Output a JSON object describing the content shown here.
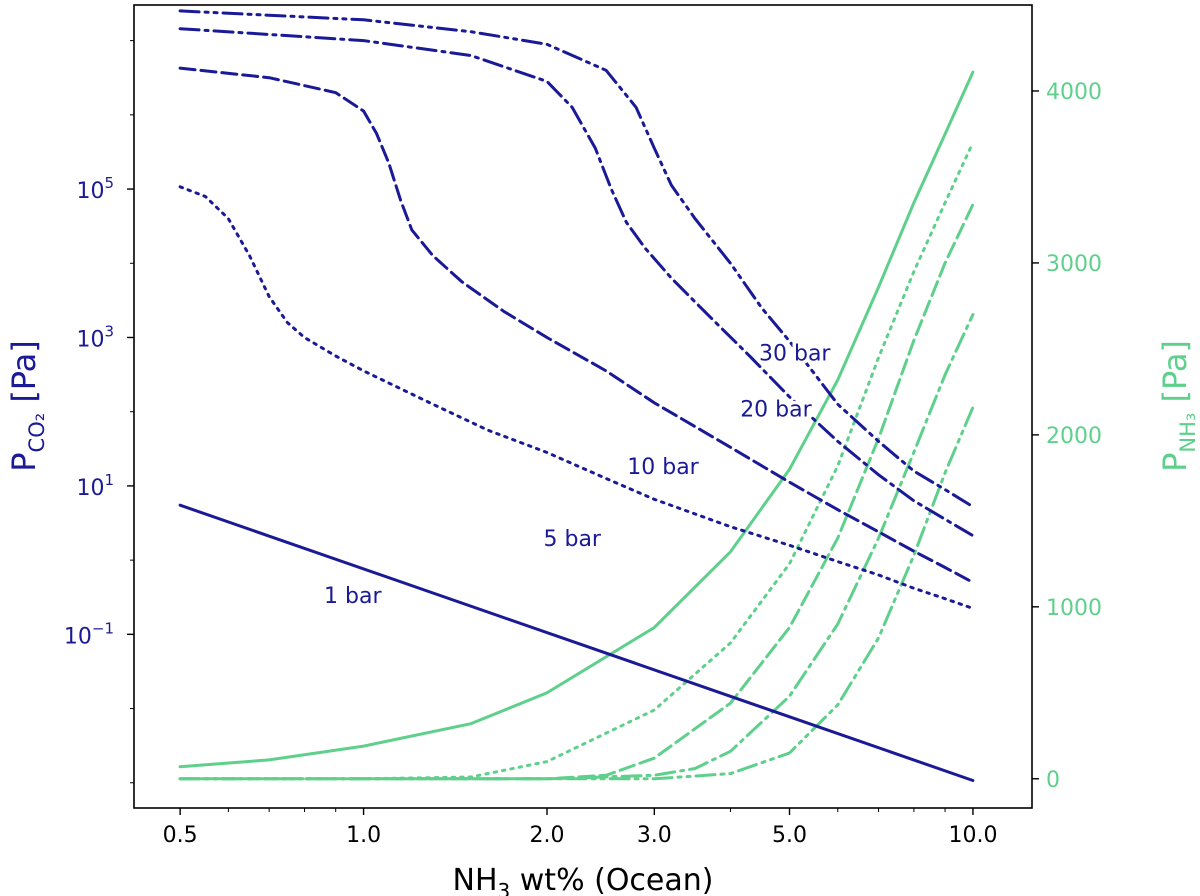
{
  "chart_data": {
    "type": "line",
    "xscale": "log",
    "xlabel": {
      "main": "NH",
      "sub": "3",
      "rest": " wt%  (Ocean)"
    },
    "xlim": [
      0.42,
      12.5
    ],
    "xticks": [
      0.5,
      1.0,
      2.0,
      3.0,
      5.0,
      10.0
    ],
    "xtick_labels": [
      "0.5",
      "1.0",
      "2.0",
      "3.0",
      "5.0",
      "10.0"
    ],
    "left_axis": {
      "scale": "log",
      "label": {
        "main": "P",
        "sub": "CO₂",
        "rest": " [Pa]"
      },
      "color": "#1a1a96",
      "ylim_exp": [
        -3.34,
        7.48
      ],
      "ticks_exp": [
        -1,
        1,
        3,
        5
      ],
      "tick_base": "10",
      "tick_exponents": [
        "−1",
        "1",
        "3",
        "5"
      ]
    },
    "right_axis": {
      "scale": "linear",
      "label": {
        "main": "P",
        "sub": "NH₃",
        "rest": " [Pa]"
      },
      "color": "#5fd08c",
      "ylim": [
        -170,
        4500
      ],
      "ticks": [
        0,
        1000,
        2000,
        3000,
        4000
      ],
      "tick_labels": [
        "0",
        "1000",
        "2000",
        "3000",
        "4000"
      ]
    },
    "co2_series": [
      {
        "name": "1 bar",
        "label": "1 bar",
        "label_at": [
          0.96,
          -0.47
        ],
        "dash": "solid",
        "points": [
          [
            0.5,
            0.74
          ],
          [
            10.0,
            -2.97
          ]
        ]
      },
      {
        "name": "5 bar",
        "label": "5 bar",
        "label_at": [
          2.2,
          0.3
        ],
        "dash": "dotted",
        "points": [
          [
            0.5,
            5.03
          ],
          [
            0.55,
            4.9
          ],
          [
            0.6,
            4.6
          ],
          [
            0.65,
            4.1
          ],
          [
            0.7,
            3.55
          ],
          [
            0.75,
            3.2
          ],
          [
            0.8,
            3.0
          ],
          [
            0.9,
            2.75
          ],
          [
            1.0,
            2.55
          ],
          [
            1.3,
            2.1
          ],
          [
            1.6,
            1.75
          ],
          [
            2.0,
            1.45
          ],
          [
            2.5,
            1.1
          ],
          [
            3.0,
            0.82
          ],
          [
            4.0,
            0.45
          ],
          [
            5.0,
            0.2
          ],
          [
            6.0,
            -0.02
          ],
          [
            7.0,
            -0.2
          ],
          [
            8.0,
            -0.38
          ],
          [
            9.0,
            -0.52
          ],
          [
            10.0,
            -0.65
          ]
        ]
      },
      {
        "name": "10 bar",
        "label": "10 bar",
        "label_at": [
          3.1,
          1.27
        ],
        "dash": "dashed",
        "points": [
          [
            0.5,
            6.63
          ],
          [
            0.7,
            6.5
          ],
          [
            0.9,
            6.3
          ],
          [
            1.0,
            6.05
          ],
          [
            1.05,
            5.75
          ],
          [
            1.1,
            5.35
          ],
          [
            1.15,
            4.85
          ],
          [
            1.2,
            4.45
          ],
          [
            1.3,
            4.1
          ],
          [
            1.45,
            3.75
          ],
          [
            1.7,
            3.35
          ],
          [
            2.0,
            3.0
          ],
          [
            2.5,
            2.55
          ],
          [
            3.0,
            2.12
          ],
          [
            4.0,
            1.52
          ],
          [
            5.0,
            1.05
          ],
          [
            6.0,
            0.68
          ],
          [
            7.0,
            0.38
          ],
          [
            8.0,
            0.12
          ],
          [
            9.0,
            -0.1
          ],
          [
            10.0,
            -0.3
          ]
        ]
      },
      {
        "name": "20 bar",
        "label": "20 bar",
        "label_at": [
          4.75,
          2.04
        ],
        "dash": "dashdot",
        "points": [
          [
            0.5,
            7.16
          ],
          [
            1.0,
            7.0
          ],
          [
            1.5,
            6.8
          ],
          [
            2.0,
            6.45
          ],
          [
            2.2,
            6.1
          ],
          [
            2.4,
            5.55
          ],
          [
            2.55,
            5.0
          ],
          [
            2.7,
            4.55
          ],
          [
            2.9,
            4.2
          ],
          [
            3.2,
            3.8
          ],
          [
            3.7,
            3.28
          ],
          [
            4.3,
            2.75
          ],
          [
            5.0,
            2.2
          ],
          [
            6.0,
            1.6
          ],
          [
            7.0,
            1.15
          ],
          [
            8.0,
            0.8
          ],
          [
            9.0,
            0.55
          ],
          [
            10.0,
            0.33
          ]
        ]
      },
      {
        "name": "30 bar",
        "label": "30 bar",
        "label_at": [
          5.1,
          2.8
        ],
        "dash": "dashdotdot",
        "points": [
          [
            0.5,
            7.4
          ],
          [
            1.0,
            7.28
          ],
          [
            1.5,
            7.12
          ],
          [
            2.0,
            6.95
          ],
          [
            2.5,
            6.6
          ],
          [
            2.8,
            6.1
          ],
          [
            3.0,
            5.55
          ],
          [
            3.2,
            5.05
          ],
          [
            3.5,
            4.6
          ],
          [
            4.0,
            4.0
          ],
          [
            4.5,
            3.4
          ],
          [
            5.0,
            2.95
          ],
          [
            6.0,
            2.1
          ],
          [
            7.0,
            1.6
          ],
          [
            8.0,
            1.2
          ],
          [
            9.0,
            0.95
          ],
          [
            10.0,
            0.72
          ]
        ]
      }
    ],
    "nh3_series": [
      {
        "name": "1 bar",
        "dash": "solid",
        "points": [
          [
            0.5,
            70
          ],
          [
            0.7,
            110
          ],
          [
            1.0,
            190
          ],
          [
            1.5,
            320
          ],
          [
            2.0,
            500
          ],
          [
            3.0,
            880
          ],
          [
            4.0,
            1320
          ],
          [
            5.0,
            1800
          ],
          [
            6.0,
            2320
          ],
          [
            7.0,
            2860
          ],
          [
            8.0,
            3350
          ],
          [
            9.0,
            3750
          ],
          [
            10.0,
            4110
          ]
        ]
      },
      {
        "name": "5 bar",
        "dash": "dotted",
        "points": [
          [
            0.5,
            0
          ],
          [
            1.0,
            0
          ],
          [
            1.5,
            10
          ],
          [
            2.0,
            100
          ],
          [
            3.0,
            400
          ],
          [
            4.0,
            790
          ],
          [
            5.0,
            1250
          ],
          [
            6.0,
            1820
          ],
          [
            7.0,
            2450
          ],
          [
            8.0,
            2950
          ],
          [
            9.0,
            3350
          ],
          [
            10.0,
            3700
          ]
        ]
      },
      {
        "name": "10 bar",
        "dash": "dashed",
        "points": [
          [
            0.5,
            0
          ],
          [
            1.0,
            0
          ],
          [
            2.0,
            0
          ],
          [
            2.5,
            20
          ],
          [
            3.0,
            120
          ],
          [
            4.0,
            440
          ],
          [
            5.0,
            880
          ],
          [
            6.0,
            1400
          ],
          [
            7.0,
            1980
          ],
          [
            8.0,
            2550
          ],
          [
            9.0,
            3000
          ],
          [
            10.0,
            3340
          ]
        ]
      },
      {
        "name": "20 bar",
        "dash": "dashdot",
        "points": [
          [
            0.5,
            0
          ],
          [
            2.0,
            0
          ],
          [
            3.0,
            20
          ],
          [
            3.5,
            60
          ],
          [
            4.0,
            160
          ],
          [
            5.0,
            480
          ],
          [
            6.0,
            900
          ],
          [
            7.0,
            1400
          ],
          [
            8.0,
            1900
          ],
          [
            9.0,
            2350
          ],
          [
            10.0,
            2700
          ]
        ]
      },
      {
        "name": "30 bar",
        "dash": "dashdotdot",
        "points": [
          [
            0.5,
            0
          ],
          [
            3.0,
            0
          ],
          [
            4.0,
            30
          ],
          [
            5.0,
            150
          ],
          [
            6.0,
            430
          ],
          [
            7.0,
            820
          ],
          [
            8.0,
            1300
          ],
          [
            9.0,
            1780
          ],
          [
            10.0,
            2160
          ]
        ]
      }
    ]
  }
}
